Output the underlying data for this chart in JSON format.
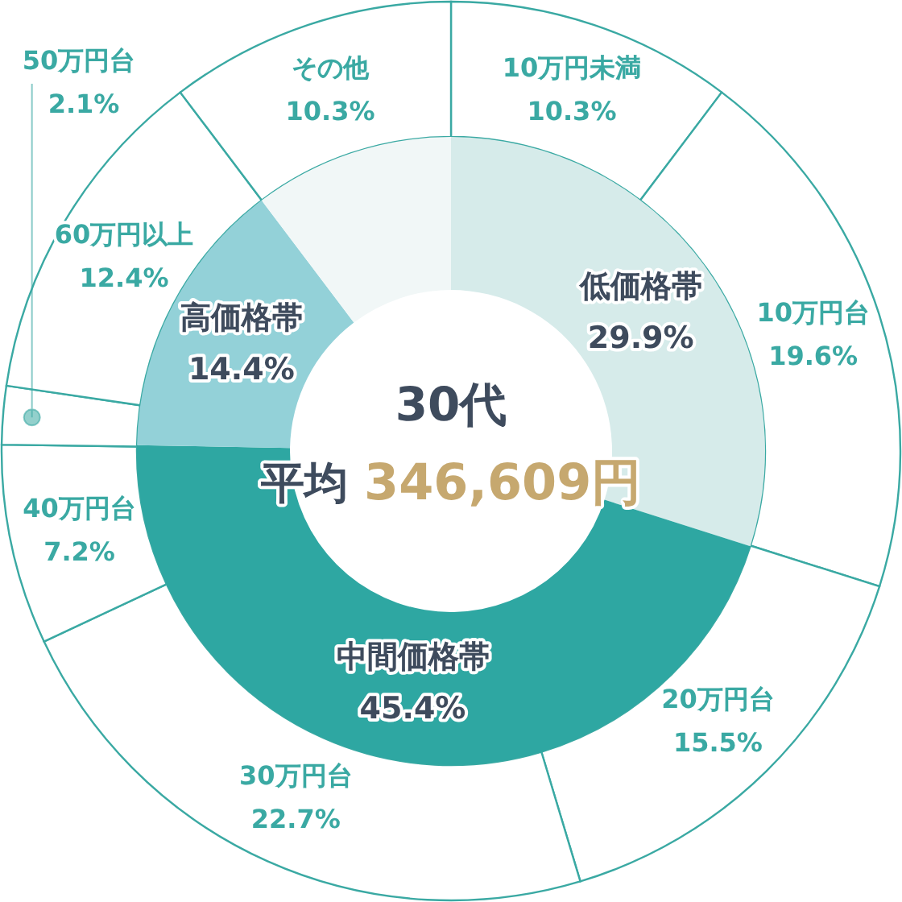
{
  "chart_data": [
    {
      "type": "donut",
      "title": "30代",
      "subtitle": "平均 346,609円",
      "categories": [
        "低価格帯",
        "中間価格帯",
        "高価格帯",
        null
      ],
      "values": [
        29.9,
        45.4,
        14.4,
        10.3
      ],
      "colors": [
        "#d6ebea",
        "#2ea7a2",
        "#93d1d8",
        "#f1f7f7"
      ],
      "value_labels": [
        "29.9%",
        "45.4%",
        "14.4%",
        null
      ]
    },
    {
      "type": "donut",
      "categories": [
        "10万円未満",
        "10万円台",
        "20万円台",
        "30万円台",
        "40万円台",
        "50万円台",
        "60万円以上",
        "その他"
      ],
      "values": [
        10.3,
        19.6,
        15.5,
        22.7,
        7.2,
        2.1,
        12.4,
        10.3
      ],
      "colors": [
        "#3aa9a3",
        "#3aa9a3",
        "#3aa9a3",
        "#3aa9a3",
        "#3aa9a3",
        "#3aa9a3",
        "#3aa9a3",
        "#3aa9a3"
      ],
      "value_labels": [
        "10.3%",
        "19.6%",
        "15.5%",
        "22.7%",
        "7.2%",
        "2.1%",
        "12.4%",
        "10.3%"
      ]
    }
  ]
}
